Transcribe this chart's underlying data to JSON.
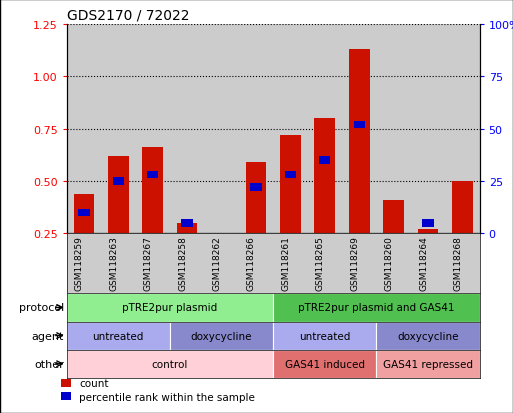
{
  "title": "GDS2170 / 72022",
  "samples": [
    "GSM118259",
    "GSM118263",
    "GSM118267",
    "GSM118258",
    "GSM118262",
    "GSM118266",
    "GSM118261",
    "GSM118265",
    "GSM118269",
    "GSM118260",
    "GSM118264",
    "GSM118268"
  ],
  "red_values": [
    0.44,
    0.62,
    0.66,
    0.3,
    0.0,
    0.59,
    0.72,
    0.8,
    1.13,
    0.41,
    0.27,
    0.5
  ],
  "blue_values": [
    0.35,
    0.5,
    0.53,
    0.3,
    0.0,
    0.47,
    0.53,
    0.6,
    0.77,
    0.0,
    0.3,
    0.0
  ],
  "ylim_left": [
    0.25,
    1.25
  ],
  "ylim_right": [
    0,
    100
  ],
  "yticks_left": [
    0.25,
    0.5,
    0.75,
    1.0,
    1.25
  ],
  "yticks_right": [
    0,
    25,
    50,
    75,
    100
  ],
  "protocol_spans": [
    {
      "label": "pTRE2pur plasmid",
      "start": 0,
      "end": 5,
      "color": "#90EE90"
    },
    {
      "label": "pTRE2pur plasmid and GAS41",
      "start": 6,
      "end": 11,
      "color": "#50C050"
    }
  ],
  "agent_spans": [
    {
      "label": "untreated",
      "start": 0,
      "end": 2,
      "color": "#AAAAEE"
    },
    {
      "label": "doxycycline",
      "start": 3,
      "end": 5,
      "color": "#8888CC"
    },
    {
      "label": "untreated",
      "start": 6,
      "end": 8,
      "color": "#AAAAEE"
    },
    {
      "label": "doxycycline",
      "start": 9,
      "end": 11,
      "color": "#8888CC"
    }
  ],
  "other_spans": [
    {
      "label": "control",
      "start": 0,
      "end": 5,
      "color": "#FFD0D8"
    },
    {
      "label": "GAS41 induced",
      "start": 6,
      "end": 8,
      "color": "#E07070"
    },
    {
      "label": "GAS41 repressed",
      "start": 9,
      "end": 11,
      "color": "#F0A0A0"
    }
  ],
  "bar_color": "#CC1100",
  "blue_color": "#0000CC",
  "bg_color": "#CCCCCC",
  "row_labels": [
    "protocol",
    "agent",
    "other"
  ],
  "legend_red": "count",
  "legend_blue": "percentile rank within the sample"
}
